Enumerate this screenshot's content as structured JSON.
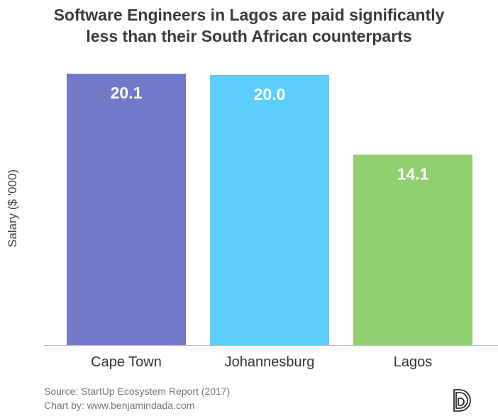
{
  "chart_data": {
    "type": "bar",
    "title_lines": [
      "Software Engineers in Lagos are paid significantly",
      "less than their South African counterparts"
    ],
    "categories": [
      "Cape Town",
      "Johannesburg",
      "Lagos"
    ],
    "values": [
      20.1,
      20.0,
      14.1
    ],
    "value_labels": [
      "20.1",
      "20.0",
      "14.1"
    ],
    "colors": [
      "#7379c9",
      "#5dcdfd",
      "#92d06f"
    ],
    "xlabel": "",
    "ylabel": "Salary ($ '000)",
    "ylim": [
      0,
      20.1
    ],
    "grid": false
  },
  "footer": {
    "source": "Source: StartUp Ecosystem Report (2017)",
    "credit": "Chart by: www.benjamindada.com",
    "logo_text": "D"
  }
}
